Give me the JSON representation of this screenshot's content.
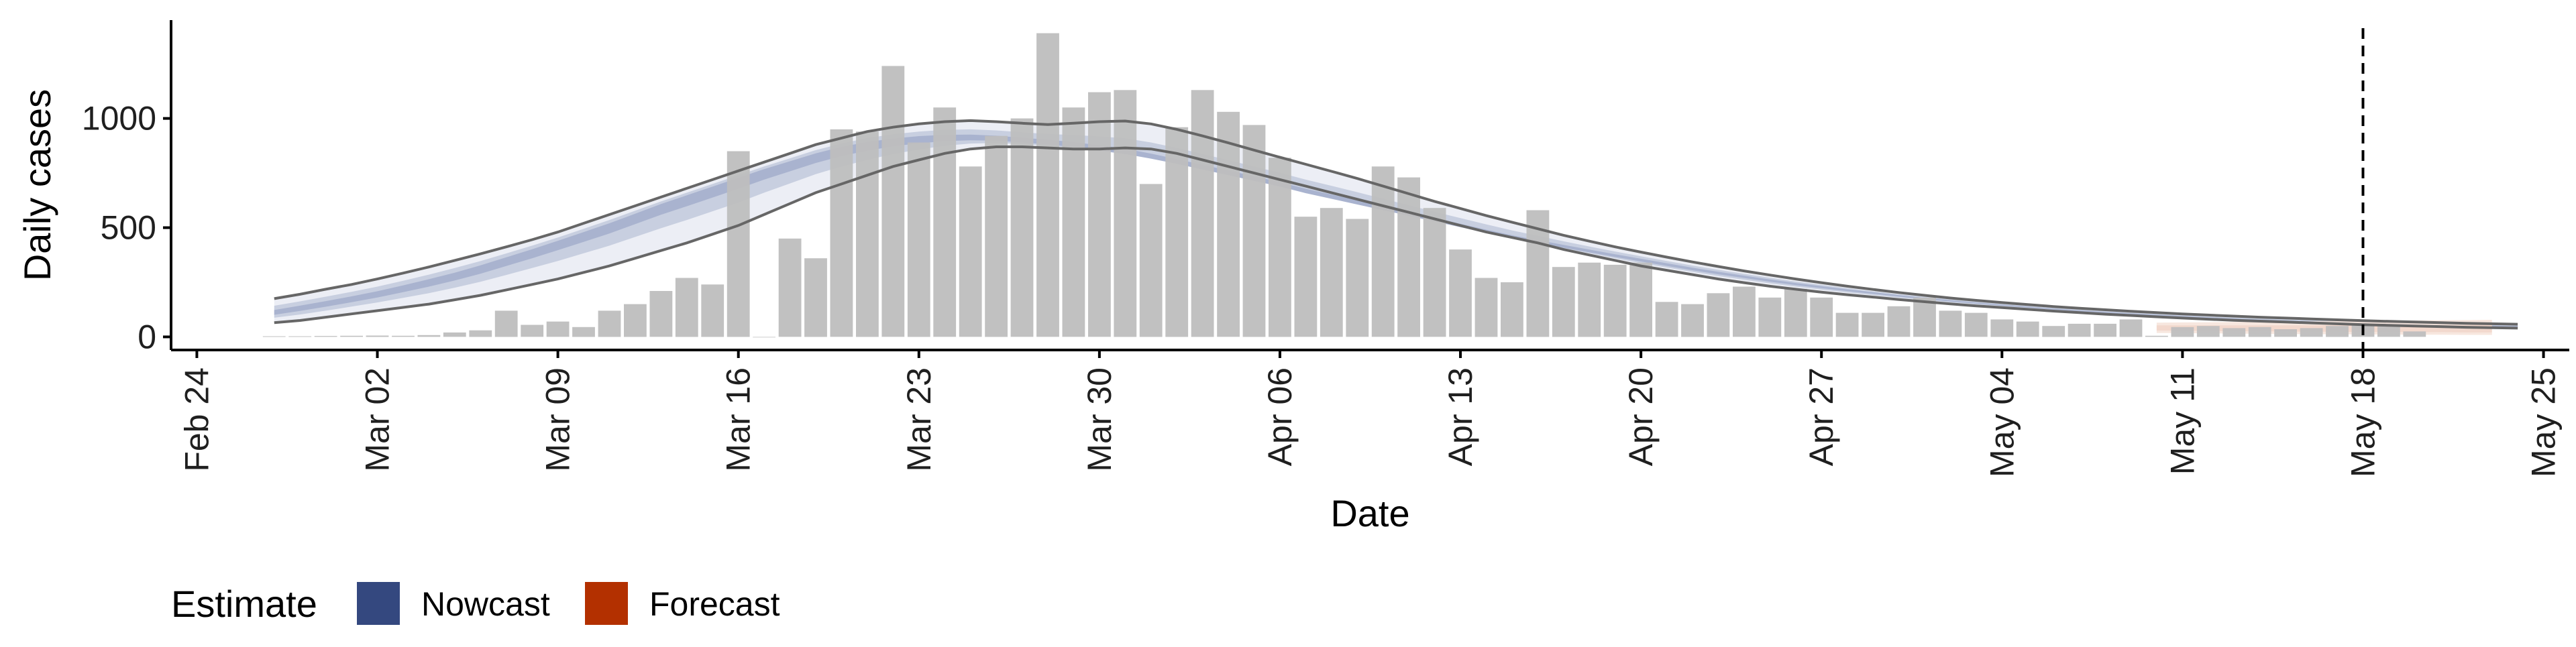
{
  "colors": {
    "bar": "#bebebe",
    "nowcast": "#34487f",
    "forecast": "#b33000",
    "band_outer": "#eceef5",
    "band_mid": "#c8cfe0",
    "band_inner": "#a9b3cf",
    "forecast_band": "#f6e4dc",
    "ci_line": "#666666",
    "axis": "#000000"
  },
  "legend": {
    "title": "Estimate",
    "items": [
      {
        "label": "Nowcast",
        "color": "#34487f"
      },
      {
        "label": "Forecast",
        "color": "#b33000"
      }
    ]
  },
  "chart_data": {
    "type": "bar",
    "title": "",
    "xlabel": "Date",
    "ylabel": "Daily cases",
    "grid": false,
    "legend_position": "bottom-left",
    "xlim": [
      "2020-02-23",
      "2020-05-26"
    ],
    "ylim": [
      -60,
      1450
    ],
    "x_ticks": [
      "2020-02-24",
      "2020-03-02",
      "2020-03-09",
      "2020-03-16",
      "2020-03-23",
      "2020-03-30",
      "2020-04-06",
      "2020-04-13",
      "2020-04-20",
      "2020-04-27",
      "2020-05-04",
      "2020-05-11",
      "2020-05-18",
      "2020-05-25"
    ],
    "x_tick_labels": [
      "Feb 24",
      "Mar 02",
      "Mar 09",
      "Mar 16",
      "Mar 23",
      "Mar 30",
      "Apr 06",
      "Apr 13",
      "Apr 20",
      "Apr 27",
      "May 04",
      "May 11",
      "May 18",
      "May 25"
    ],
    "y_ticks": [
      0,
      500,
      1000
    ],
    "y_tick_labels": [
      "0",
      "500",
      "1000"
    ],
    "vline_date": "2020-05-18",
    "daily_cases": {
      "start_date": "2020-02-27",
      "values": [
        3,
        3,
        4,
        5,
        6,
        5,
        8,
        20,
        30,
        120,
        55,
        70,
        45,
        120,
        150,
        210,
        270,
        240,
        850,
        0,
        450,
        360,
        950,
        940,
        1240,
        890,
        1050,
        780,
        920,
        1000,
        1390,
        1050,
        1120,
        1130,
        700,
        960,
        1130,
        1030,
        970,
        820,
        550,
        590,
        540,
        780,
        730,
        590,
        400,
        270,
        250,
        580,
        320,
        340,
        330,
        340,
        160,
        150,
        200,
        230,
        180,
        220,
        180,
        110,
        110,
        140,
        180,
        120,
        110,
        80,
        70,
        50,
        60,
        60,
        80,
        5,
        45,
        50,
        40,
        45,
        35,
        40,
        50,
        55,
        55,
        25
      ]
    },
    "nowcast": {
      "start_date": "2020-02-27",
      "median": [
        110,
        130,
        150,
        172,
        195,
        222,
        250,
        280,
        314,
        352,
        390,
        430,
        470,
        510,
        555,
        600,
        640,
        680,
        720,
        760,
        795,
        830,
        860,
        880,
        895,
        905,
        910,
        910,
        905,
        895,
        885,
        870,
        850,
        830,
        805,
        780,
        755,
        730,
        705,
        680,
        650,
        625,
        600,
        575,
        550,
        525,
        500,
        475,
        450,
        430,
        410,
        390,
        370,
        350,
        330,
        310,
        292,
        275,
        258,
        242,
        228,
        214,
        201,
        188,
        176,
        165,
        155,
        145,
        136,
        127,
        119,
        112,
        105,
        99,
        93,
        87,
        82,
        77,
        73,
        69,
        65,
        62,
        59,
        56,
        53,
        51,
        49,
        47
      ],
      "lower90": [
        65,
        75,
        90,
        105,
        120,
        135,
        150,
        170,
        190,
        215,
        240,
        265,
        295,
        325,
        360,
        395,
        430,
        470,
        510,
        560,
        610,
        660,
        700,
        740,
        780,
        810,
        840,
        860,
        870,
        870,
        865,
        860,
        860,
        865,
        860,
        840,
        810,
        780,
        750,
        720,
        690,
        660,
        630,
        600,
        570,
        540,
        510,
        480,
        455,
        430,
        400,
        375,
        350,
        325,
        305,
        285,
        265,
        248,
        232,
        218,
        205,
        193,
        182,
        171,
        161,
        151,
        142,
        134,
        126,
        118,
        111,
        104,
        98,
        92,
        86,
        81,
        76,
        72,
        68,
        64,
        60,
        56,
        53,
        50,
        47,
        44,
        42,
        40
      ],
      "upper90": [
        175,
        195,
        218,
        240,
        265,
        292,
        320,
        350,
        380,
        412,
        445,
        480,
        520,
        560,
        600,
        640,
        680,
        720,
        760,
        800,
        840,
        880,
        910,
        940,
        960,
        975,
        985,
        990,
        985,
        978,
        972,
        978,
        985,
        988,
        975,
        950,
        920,
        888,
        855,
        822,
        790,
        758,
        725,
        690,
        655,
        620,
        588,
        555,
        525,
        495,
        465,
        438,
        412,
        388,
        365,
        343,
        322,
        302,
        283,
        265,
        248,
        232,
        217,
        203,
        190,
        178,
        167,
        157,
        148,
        139,
        131,
        124,
        117,
        111,
        105,
        100,
        95,
        90,
        86,
        82,
        78,
        74,
        71,
        68,
        65,
        62,
        60,
        58
      ]
    },
    "forecast": {
      "start_date": "2020-05-10",
      "median": [
        40,
        39,
        38,
        37,
        37,
        36,
        35,
        35,
        34,
        34,
        33,
        33,
        32,
        32
      ],
      "lower90": [
        18,
        17,
        16,
        15,
        14,
        13,
        12,
        12,
        11,
        11,
        10,
        10,
        9,
        9
      ],
      "upper90": [
        65,
        66,
        67,
        68,
        69,
        70,
        71,
        72,
        73,
        74,
        75,
        76,
        77,
        78
      ]
    }
  }
}
